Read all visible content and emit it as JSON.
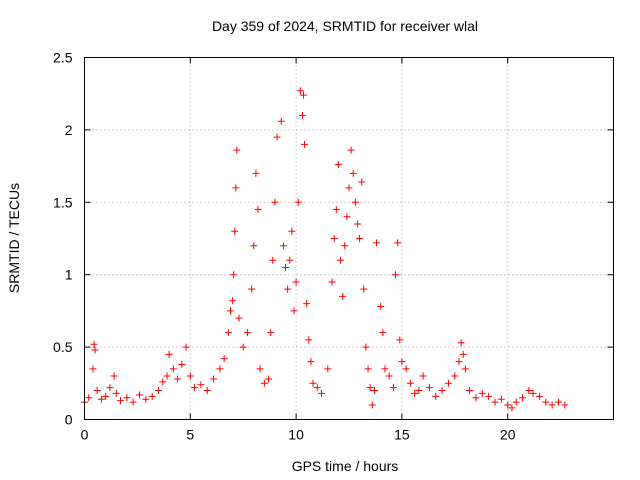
{
  "chart_data": {
    "type": "scatter",
    "title": "Day 359 of 2024, SRMTID for receiver wlal",
    "xlabel": "GPS time / hours",
    "ylabel": "SRMTID / TECUs",
    "xlim": [
      0,
      25
    ],
    "ylim": [
      0,
      2.5
    ],
    "xticks": [
      0,
      5,
      10,
      15,
      20
    ],
    "xtick_labels": [
      "0",
      "5",
      "10",
      "15",
      "20"
    ],
    "yticks": [
      0,
      0.5,
      1,
      1.5,
      2,
      2.5
    ],
    "ytick_labels": [
      "0",
      "0.5",
      "1",
      "1.5",
      "2",
      "2.5"
    ],
    "grid": true,
    "marker": "+",
    "color": "#ff0000",
    "series": [
      {
        "name": "SRMTID",
        "x": [
          0.0,
          0.2,
          0.4,
          0.45,
          0.5,
          0.6,
          0.8,
          1.0,
          1.2,
          1.4,
          1.5,
          1.7,
          2.0,
          2.3,
          2.6,
          2.9,
          3.2,
          3.5,
          3.7,
          3.9,
          4.0,
          4.2,
          4.4,
          4.6,
          4.8,
          5.0,
          5.2,
          5.5,
          5.8,
          6.1,
          6.4,
          6.6,
          6.8,
          6.9,
          7.0,
          7.05,
          7.1,
          7.15,
          7.2,
          7.3,
          7.5,
          7.7,
          7.9,
          8.0,
          8.1,
          8.2,
          8.3,
          8.5,
          8.7,
          8.8,
          8.9,
          9.0,
          9.1,
          9.3,
          9.4,
          9.5,
          9.6,
          9.7,
          9.8,
          9.9,
          10.0,
          10.1,
          10.2,
          10.3,
          10.35,
          10.4,
          10.5,
          10.6,
          10.7,
          10.8,
          11.0,
          11.2,
          11.5,
          11.7,
          11.8,
          11.9,
          12.0,
          12.1,
          12.2,
          12.3,
          12.4,
          12.5,
          12.6,
          12.7,
          12.8,
          12.9,
          13.0,
          13.1,
          13.2,
          13.3,
          13.4,
          13.5,
          13.6,
          13.7,
          13.8,
          14.0,
          14.1,
          14.2,
          14.4,
          14.6,
          14.7,
          14.8,
          14.9,
          15.0,
          15.2,
          15.4,
          15.6,
          15.8,
          16.0,
          16.3,
          16.6,
          16.9,
          17.2,
          17.5,
          17.7,
          17.8,
          17.9,
          18.0,
          18.2,
          18.5,
          18.8,
          19.1,
          19.4,
          19.7,
          20.0,
          20.2,
          20.4,
          20.7,
          21.0,
          21.2,
          21.5,
          21.8,
          22.1,
          22.4,
          22.7
        ],
        "y": [
          0.12,
          0.15,
          0.35,
          0.52,
          0.48,
          0.2,
          0.14,
          0.16,
          0.22,
          0.3,
          0.18,
          0.13,
          0.15,
          0.12,
          0.17,
          0.14,
          0.16,
          0.2,
          0.26,
          0.3,
          0.45,
          0.35,
          0.28,
          0.38,
          0.5,
          0.3,
          0.22,
          0.24,
          0.2,
          0.28,
          0.35,
          0.42,
          0.6,
          0.75,
          0.82,
          1.0,
          1.3,
          1.6,
          1.86,
          0.7,
          0.5,
          0.6,
          0.9,
          1.2,
          1.7,
          1.45,
          0.35,
          0.25,
          0.28,
          0.6,
          1.1,
          1.5,
          1.95,
          2.06,
          1.2,
          1.05,
          0.9,
          1.1,
          1.3,
          0.75,
          0.95,
          1.5,
          2.27,
          2.1,
          2.24,
          1.9,
          0.8,
          0.55,
          0.4,
          0.25,
          0.22,
          0.18,
          0.35,
          0.95,
          1.25,
          1.45,
          1.76,
          1.1,
          0.85,
          1.2,
          1.4,
          1.6,
          1.86,
          1.7,
          1.5,
          1.35,
          1.25,
          1.64,
          0.9,
          0.5,
          0.35,
          0.22,
          0.1,
          0.2,
          1.22,
          0.78,
          0.6,
          0.35,
          0.3,
          0.22,
          1.0,
          1.22,
          0.55,
          0.4,
          0.35,
          0.25,
          0.18,
          0.2,
          0.3,
          0.22,
          0.16,
          0.2,
          0.25,
          0.3,
          0.4,
          0.53,
          0.45,
          0.35,
          0.2,
          0.15,
          0.18,
          0.16,
          0.12,
          0.14,
          0.1,
          0.08,
          0.12,
          0.15,
          0.2,
          0.18,
          0.16,
          0.12,
          0.1,
          0.12,
          0.1
        ]
      }
    ]
  }
}
